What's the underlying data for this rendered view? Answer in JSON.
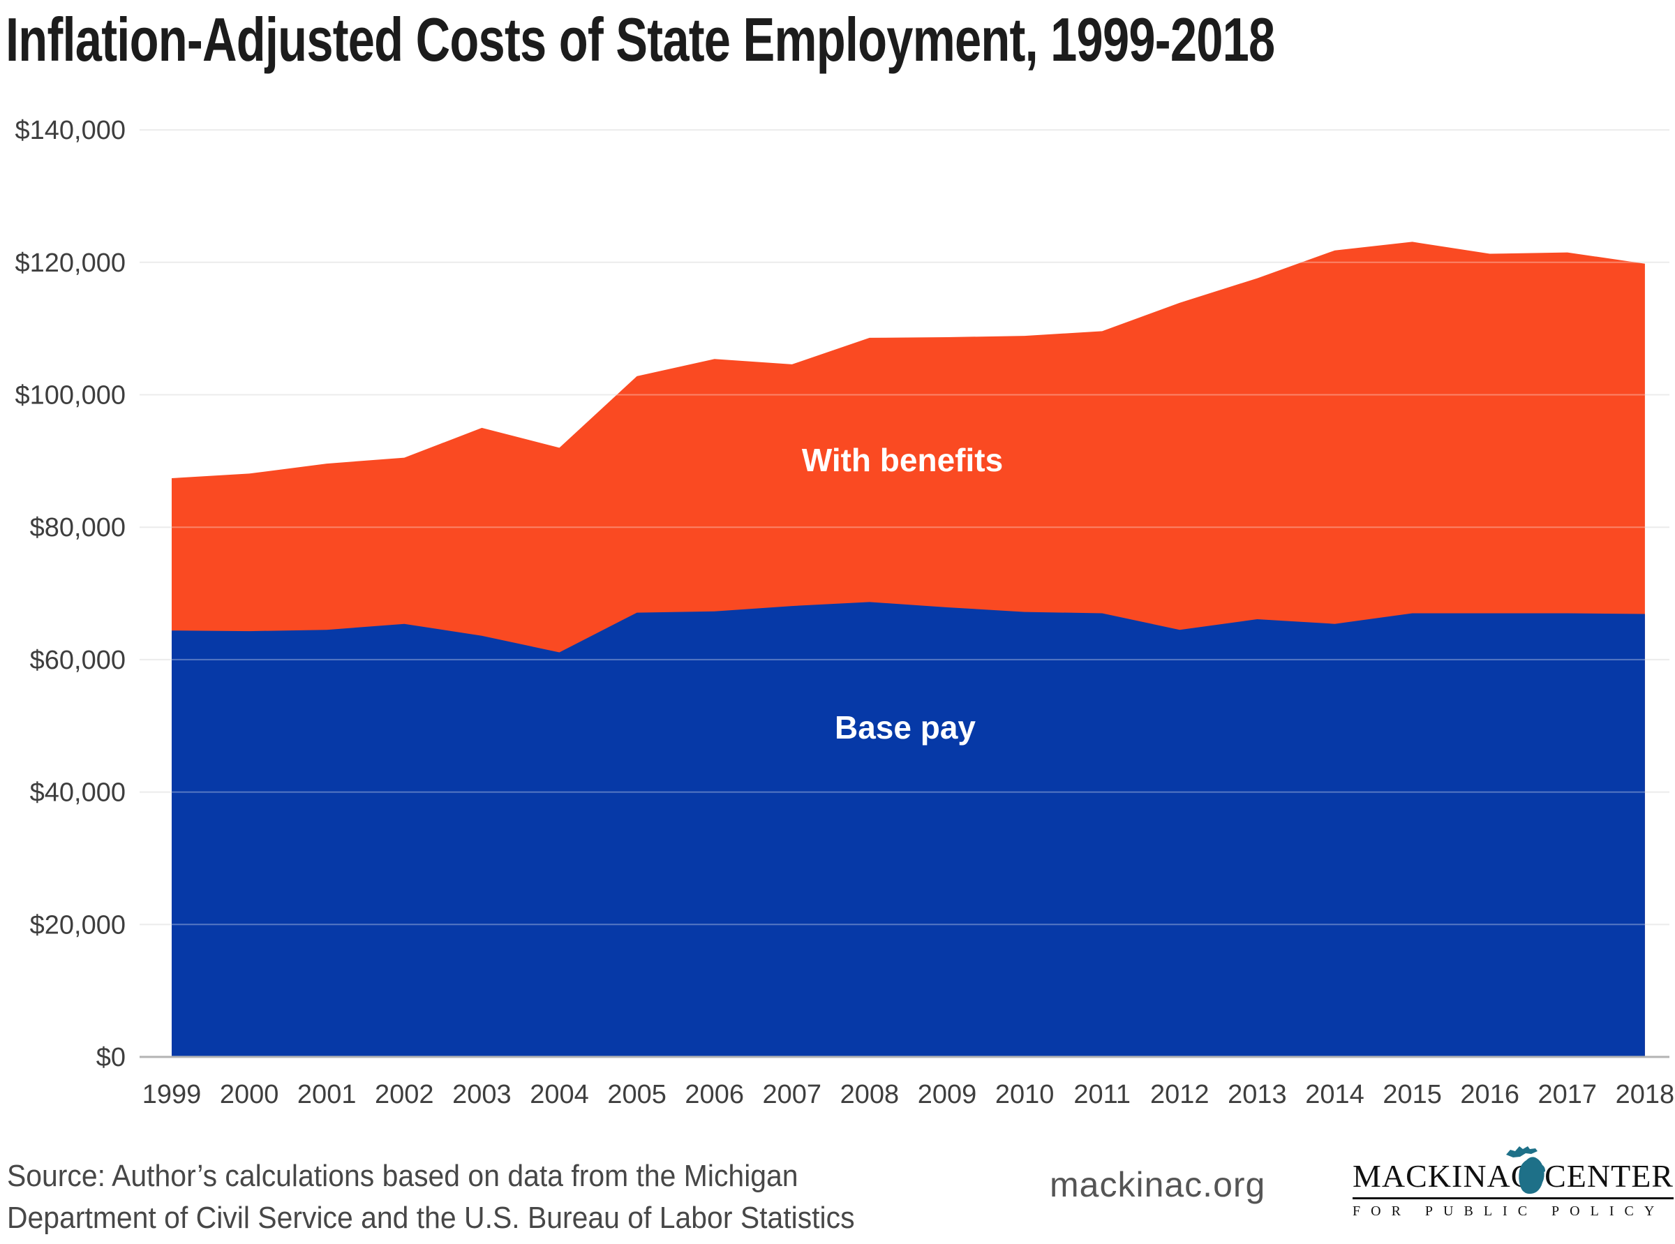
{
  "title": "Inflation-Adjusted Costs of State Employment, 1999-2018",
  "chart_data": {
    "type": "area",
    "stacked": true,
    "title": "Inflation-Adjusted Costs of State Employment, 1999-2018",
    "x": [
      1999,
      2000,
      2001,
      2002,
      2003,
      2004,
      2005,
      2006,
      2007,
      2008,
      2009,
      2010,
      2011,
      2012,
      2013,
      2014,
      2015,
      2016,
      2017,
      2018
    ],
    "series": [
      {
        "name": "Base pay",
        "color": "#0639a7",
        "values": [
          64400,
          64300,
          64500,
          65400,
          63600,
          61100,
          67100,
          67300,
          68100,
          68700,
          67900,
          67200,
          67000,
          64500,
          66100,
          65400,
          67000,
          67000,
          67000,
          66900
        ]
      },
      {
        "name": "With benefits",
        "color": "#fa4a22",
        "represents": "total compensation (base pay + benefits)",
        "values": [
          87400,
          88100,
          89600,
          90500,
          95000,
          92000,
          102800,
          105400,
          104600,
          108600,
          108700,
          108900,
          109600,
          113900,
          117600,
          121800,
          123100,
          121300,
          121500,
          119800
        ]
      }
    ],
    "labels": [
      {
        "text": "Base pay",
        "x": 1297,
        "y": 1058
      },
      {
        "text": "With benefits",
        "x": 1293,
        "y": 675
      }
    ],
    "xlabel": "",
    "ylabel": "",
    "ylim": [
      0,
      140000
    ],
    "y_ticks": [
      "$0",
      "$20,000",
      "$40,000",
      "$60,000",
      "$80,000",
      "$100,000",
      "$120,000",
      "$140,000"
    ],
    "grid": true,
    "legend_position": "inside-area-labels"
  },
  "colors": {
    "base_pay": "#0639a7",
    "with_benefits": "#fa4a22",
    "gridline": "#e3e3e3",
    "baseline": "#b3b3b3",
    "tick_text": "#3e3e3e",
    "logo_teal": "#1e7088"
  },
  "footer": {
    "source_line1": "Source: Author’s calculations based on data from the Michigan",
    "source_line2": "Department of Civil Service and the U.S. Bureau of Labor Statistics",
    "website": "mackinac.org",
    "logo": {
      "name_left": "MACKINAC",
      "name_right": "CENTER",
      "tagline": "FOR PUBLIC POLICY",
      "icon": "michigan-icon"
    }
  }
}
